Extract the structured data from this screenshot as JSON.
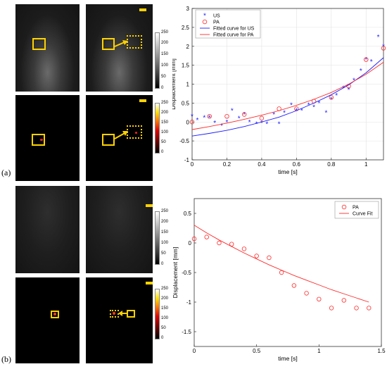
{
  "panel_labels": {
    "a": "(a)",
    "b": "(b)"
  },
  "colorbar_ticks": [
    "250",
    "200",
    "150",
    "100",
    "50",
    "0"
  ],
  "colors": {
    "marker_yellow": "#ffd200",
    "us_series": "#1a1aff",
    "pa_series": "#ff2a2a"
  },
  "chart_data": [
    {
      "type": "scatter",
      "title": "",
      "xlabel": "time [s]",
      "ylabel": "Displacement [mm]",
      "xlim": [
        0,
        1.1
      ],
      "ylim": [
        -1,
        3
      ],
      "xticks": [
        "0",
        "0.2",
        "0.4",
        "0.6",
        "0.8",
        "1"
      ],
      "xtick_values": [
        0,
        0.2,
        0.4,
        0.6,
        0.8,
        1.0
      ],
      "yticks": [
        "-1",
        "-0.5",
        "0",
        "0.5",
        "1",
        "1.5",
        "2",
        "2.5",
        "3"
      ],
      "ytick_values": [
        -1,
        -0.5,
        0,
        0.5,
        1,
        1.5,
        2,
        2.5,
        3
      ],
      "grid": true,
      "legend_position": "top-left",
      "series": [
        {
          "name": "US",
          "marker": "asterisk",
          "color": "#1a1aff",
          "x": [
            0.0,
            0.03,
            0.07,
            0.1,
            0.13,
            0.17,
            0.2,
            0.23,
            0.27,
            0.3,
            0.33,
            0.37,
            0.4,
            0.43,
            0.47,
            0.5,
            0.53,
            0.57,
            0.6,
            0.63,
            0.67,
            0.7,
            0.73,
            0.77,
            0.8,
            0.83,
            0.87,
            0.9,
            0.93,
            0.97,
            1.0,
            1.03,
            1.07,
            1.1
          ],
          "y": [
            0.15,
            0.05,
            0.12,
            0.12,
            -0.02,
            -0.1,
            0.0,
            0.3,
            0.1,
            0.2,
            0.0,
            -0.05,
            -0.02,
            -0.05,
            0.2,
            -0.05,
            0.25,
            0.45,
            0.3,
            0.3,
            0.45,
            0.4,
            0.5,
            0.25,
            0.6,
            0.7,
            0.9,
            0.85,
            1.1,
            1.35,
            1.65,
            1.6,
            2.25,
            2.0
          ]
        },
        {
          "name": "PA",
          "marker": "circle",
          "color": "#ff2a2a",
          "x": [
            0.0,
            0.1,
            0.2,
            0.3,
            0.4,
            0.5,
            0.6,
            0.7,
            0.8,
            0.9,
            1.0,
            1.1
          ],
          "y": [
            0.0,
            0.15,
            0.15,
            0.2,
            0.1,
            0.35,
            0.35,
            0.55,
            0.65,
            0.95,
            1.65,
            1.95
          ]
        },
        {
          "name": "Fitted curve for US",
          "type": "line",
          "color": "#1a1aff",
          "x": [
            0.0,
            0.1,
            0.2,
            0.3,
            0.4,
            0.5,
            0.6,
            0.7,
            0.8,
            0.9,
            1.0,
            1.1
          ],
          "y": [
            -0.37,
            -0.3,
            -0.22,
            -0.12,
            0.0,
            0.13,
            0.3,
            0.5,
            0.72,
            0.98,
            1.3,
            1.7
          ]
        },
        {
          "name": "Fitted curve for PA",
          "type": "line",
          "color": "#ff2a2a",
          "x": [
            0.0,
            0.1,
            0.2,
            0.3,
            0.4,
            0.5,
            0.6,
            0.7,
            0.8,
            0.9,
            1.0,
            1.1
          ],
          "y": [
            -0.2,
            -0.12,
            -0.03,
            0.07,
            0.18,
            0.3,
            0.44,
            0.6,
            0.78,
            1.0,
            1.26,
            1.58
          ]
        }
      ]
    },
    {
      "type": "scatter",
      "title": "",
      "xlabel": "time [s]",
      "ylabel": "Displacement [mm]",
      "xlim": [
        0,
        1.5
      ],
      "ylim": [
        -1.75,
        0.75
      ],
      "xticks": [
        "0",
        "0.5",
        "1",
        "1.5"
      ],
      "xtick_values": [
        0,
        0.5,
        1.0,
        1.5
      ],
      "yticks": [
        "-1.5",
        "-1",
        "-0.5",
        "0",
        "0.5"
      ],
      "ytick_values": [
        -1.5,
        -1,
        -0.5,
        0,
        0.5
      ],
      "grid": false,
      "legend_position": "top-right",
      "series": [
        {
          "name": "PA",
          "marker": "circle",
          "color": "#ff2a2a",
          "x": [
            0.0,
            0.1,
            0.2,
            0.3,
            0.4,
            0.5,
            0.6,
            0.7,
            0.8,
            0.9,
            1.0,
            1.1,
            1.2,
            1.3,
            1.4
          ],
          "y": [
            0.07,
            0.1,
            0.0,
            -0.02,
            -0.1,
            -0.22,
            -0.25,
            -0.5,
            -0.72,
            -0.85,
            -0.95,
            -1.1,
            -0.97,
            -1.1,
            -1.1
          ]
        },
        {
          "name": "Curve Fit",
          "type": "line",
          "color": "#ff2a2a",
          "x": [
            0.0,
            0.1,
            0.2,
            0.3,
            0.4,
            0.5,
            0.6,
            0.7,
            0.8,
            0.9,
            1.0,
            1.1,
            1.2,
            1.3,
            1.4
          ],
          "y": [
            0.3,
            0.17,
            0.05,
            -0.06,
            -0.17,
            -0.27,
            -0.37,
            -0.46,
            -0.55,
            -0.63,
            -0.71,
            -0.79,
            -0.86,
            -0.93,
            -1.0
          ]
        }
      ]
    }
  ]
}
